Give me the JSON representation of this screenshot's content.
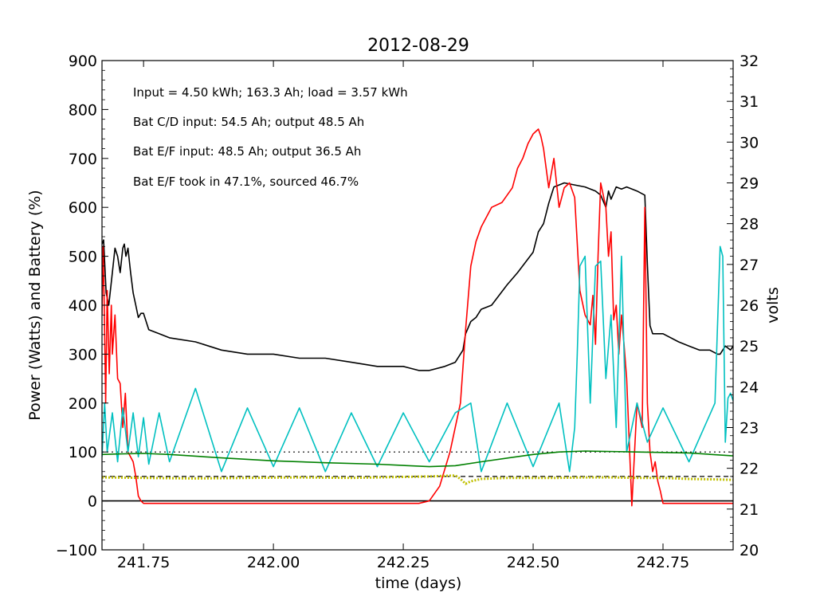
{
  "chart_data": {
    "type": "line",
    "title": "2012-08-29",
    "xlabel": "time (days)",
    "ylabel": "Power (Watts) and Battery (%)",
    "ylabel_right": "volts",
    "xlim": [
      241.67,
      242.885
    ],
    "ylim": [
      -100,
      900
    ],
    "ylim_right": [
      20,
      32
    ],
    "x_ticks": [
      241.75,
      242.0,
      242.25,
      242.5,
      242.75
    ],
    "x_tick_labels": [
      "241.75",
      "242.00",
      "242.25",
      "242.50",
      "242.75"
    ],
    "y_ticks": [
      -100,
      0,
      100,
      200,
      300,
      400,
      500,
      600,
      700,
      800,
      900
    ],
    "y_tick_labels": [
      "−100",
      "0",
      "100",
      "200",
      "300",
      "400",
      "500",
      "600",
      "700",
      "800",
      "900"
    ],
    "y_right_ticks": [
      20,
      21,
      22,
      23,
      24,
      25,
      26,
      27,
      28,
      29,
      30,
      31,
      32
    ],
    "y_right_tick_labels": [
      "20",
      "21",
      "22",
      "23",
      "24",
      "25",
      "26",
      "27",
      "28",
      "29",
      "30",
      "31",
      "32"
    ],
    "grid": false,
    "annotations": [
      "Input = 4.50 kWh; 163.3 Ah; load = 3.57 kWh",
      "Bat C/D input: 54.5 Ah; output 48.5 Ah",
      "Bat E/F input: 48.5 Ah; output 36.5 Ah",
      "Bat E/F took in 47.1%, sourced 46.7%"
    ],
    "hlines": [
      {
        "y": 0,
        "style": "solid",
        "color": "#000000"
      },
      {
        "y": 100,
        "style": "dotted",
        "color": "#000000"
      },
      {
        "y": 50,
        "style": "dashed",
        "color": "#000000"
      }
    ],
    "series": [
      {
        "color": "#000000",
        "axis": "right",
        "x": [
          241.67,
          241.673,
          241.678,
          241.683,
          241.69,
          241.695,
          241.7,
          241.705,
          241.71,
          241.713,
          241.716,
          241.72,
          241.725,
          241.73,
          241.735,
          241.74,
          241.745,
          241.75,
          241.76,
          241.78,
          241.8,
          241.85,
          241.9,
          241.95,
          242.0,
          242.05,
          242.1,
          242.15,
          242.2,
          242.25,
          242.28,
          242.3,
          242.33,
          242.35,
          242.365,
          242.37,
          242.38,
          242.39,
          242.4,
          242.42,
          242.45,
          242.47,
          242.5,
          242.51,
          242.52,
          242.53,
          242.54,
          242.55,
          242.56,
          242.58,
          242.6,
          242.62,
          242.63,
          242.64,
          242.645,
          242.65,
          242.66,
          242.67,
          242.68,
          242.7,
          242.715,
          242.72,
          242.725,
          242.73,
          242.75,
          242.78,
          242.8,
          242.82,
          242.84,
          242.855,
          242.86,
          242.87,
          242.88,
          242.885
        ],
        "y": [
          27.5,
          27.6,
          26.3,
          26.0,
          26.8,
          27.4,
          27.2,
          26.8,
          27.4,
          27.5,
          27.2,
          27.4,
          26.8,
          26.3,
          26.0,
          25.7,
          25.8,
          25.8,
          25.4,
          25.3,
          25.2,
          25.1,
          24.9,
          24.8,
          24.8,
          24.7,
          24.7,
          24.6,
          24.5,
          24.5,
          24.4,
          24.4,
          24.5,
          24.6,
          24.9,
          25.3,
          25.6,
          25.7,
          25.9,
          26.0,
          26.5,
          26.8,
          27.3,
          27.8,
          28.0,
          28.5,
          28.9,
          28.95,
          29.0,
          28.95,
          28.9,
          28.8,
          28.7,
          28.4,
          28.8,
          28.6,
          28.9,
          28.85,
          28.9,
          28.8,
          28.7,
          27.0,
          25.5,
          25.3,
          25.3,
          25.1,
          25.0,
          24.9,
          24.9,
          24.8,
          24.8,
          25.0,
          24.9,
          25.0
        ]
      },
      {
        "color": "#ff0000",
        "axis": "left",
        "x": [
          241.67,
          241.672,
          241.674,
          241.677,
          241.68,
          241.684,
          241.688,
          241.69,
          241.695,
          241.7,
          241.705,
          241.71,
          241.715,
          241.72,
          241.73,
          241.735,
          241.74,
          241.745,
          241.75,
          241.76,
          241.78,
          241.8,
          241.85,
          241.9,
          241.95,
          242.0,
          242.05,
          242.1,
          242.15,
          242.2,
          242.25,
          242.28,
          242.3,
          242.32,
          242.34,
          242.36,
          242.37,
          242.38,
          242.39,
          242.4,
          242.42,
          242.44,
          242.46,
          242.47,
          242.48,
          242.49,
          242.5,
          242.51,
          242.515,
          242.52,
          242.53,
          242.54,
          242.55,
          242.56,
          242.57,
          242.58,
          242.59,
          242.6,
          242.61,
          242.615,
          242.62,
          242.625,
          242.63,
          242.64,
          242.645,
          242.65,
          242.655,
          242.66,
          242.665,
          242.67,
          242.675,
          242.68,
          242.69,
          242.7,
          242.71,
          242.715,
          242.72,
          242.725,
          242.73,
          242.735,
          242.74,
          242.745,
          242.75,
          242.76,
          242.77,
          242.78,
          242.8,
          242.85,
          242.885
        ],
        "y": [
          380,
          520,
          420,
          200,
          430,
          260,
          400,
          300,
          380,
          250,
          240,
          150,
          220,
          100,
          80,
          50,
          10,
          0,
          -5,
          -5,
          -5,
          -5,
          -5,
          -5,
          -5,
          -5,
          -5,
          -5,
          -5,
          -5,
          -5,
          -5,
          0,
          30,
          100,
          200,
          350,
          480,
          530,
          560,
          600,
          610,
          640,
          680,
          700,
          730,
          750,
          760,
          745,
          720,
          640,
          700,
          600,
          640,
          650,
          620,
          430,
          380,
          360,
          420,
          320,
          500,
          650,
          600,
          500,
          550,
          370,
          400,
          300,
          380,
          320,
          250,
          -10,
          200,
          150,
          600,
          200,
          100,
          60,
          80,
          40,
          20,
          -5,
          -5,
          -5,
          -5,
          -5,
          -5,
          -5
        ]
      },
      {
        "color": "#00c0c0",
        "axis": "left",
        "x": [
          241.67,
          241.675,
          241.68,
          241.69,
          241.7,
          241.71,
          241.72,
          241.73,
          241.74,
          241.75,
          241.76,
          241.78,
          241.8,
          241.85,
          241.9,
          241.95,
          242.0,
          242.05,
          242.1,
          242.15,
          242.2,
          242.25,
          242.3,
          242.35,
          242.38,
          242.4,
          242.45,
          242.5,
          242.55,
          242.57,
          242.58,
          242.585,
          242.59,
          242.6,
          242.61,
          242.62,
          242.63,
          242.64,
          242.65,
          242.66,
          242.67,
          242.68,
          242.7,
          242.72,
          242.75,
          242.8,
          242.85,
          242.86,
          242.865,
          242.87,
          242.875,
          242.88,
          242.885
        ],
        "y": [
          90,
          200,
          100,
          180,
          80,
          190,
          100,
          180,
          90,
          170,
          75,
          180,
          80,
          230,
          60,
          190,
          70,
          190,
          60,
          180,
          70,
          180,
          80,
          180,
          200,
          60,
          200,
          70,
          200,
          60,
          150,
          300,
          480,
          500,
          200,
          480,
          490,
          250,
          380,
          150,
          500,
          100,
          200,
          120,
          190,
          80,
          200,
          520,
          500,
          120,
          210,
          220,
          205
        ]
      },
      {
        "color": "#008000",
        "axis": "left",
        "x": [
          241.67,
          241.7,
          241.75,
          241.8,
          241.9,
          242.0,
          242.1,
          242.2,
          242.3,
          242.35,
          242.4,
          242.5,
          242.55,
          242.6,
          242.7,
          242.8,
          242.885
        ],
        "y": [
          95,
          96,
          97,
          95,
          88,
          82,
          78,
          75,
          70,
          72,
          80,
          95,
          100,
          102,
          100,
          98,
          92
        ]
      },
      {
        "color": "#c0c000",
        "axis": "left",
        "x": [
          241.67,
          241.75,
          241.85,
          241.95,
          242.05,
          242.15,
          242.25,
          242.3,
          242.35,
          242.36,
          242.37,
          242.38,
          242.4,
          242.45,
          242.5,
          242.55,
          242.6,
          242.65,
          242.7,
          242.75,
          242.8,
          242.85,
          242.885
        ],
        "y": [
          48,
          47,
          46,
          47,
          48,
          47,
          49,
          50,
          52,
          45,
          35,
          40,
          45,
          47,
          47,
          47,
          48,
          48,
          47,
          47,
          45,
          44,
          43
        ]
      }
    ]
  }
}
